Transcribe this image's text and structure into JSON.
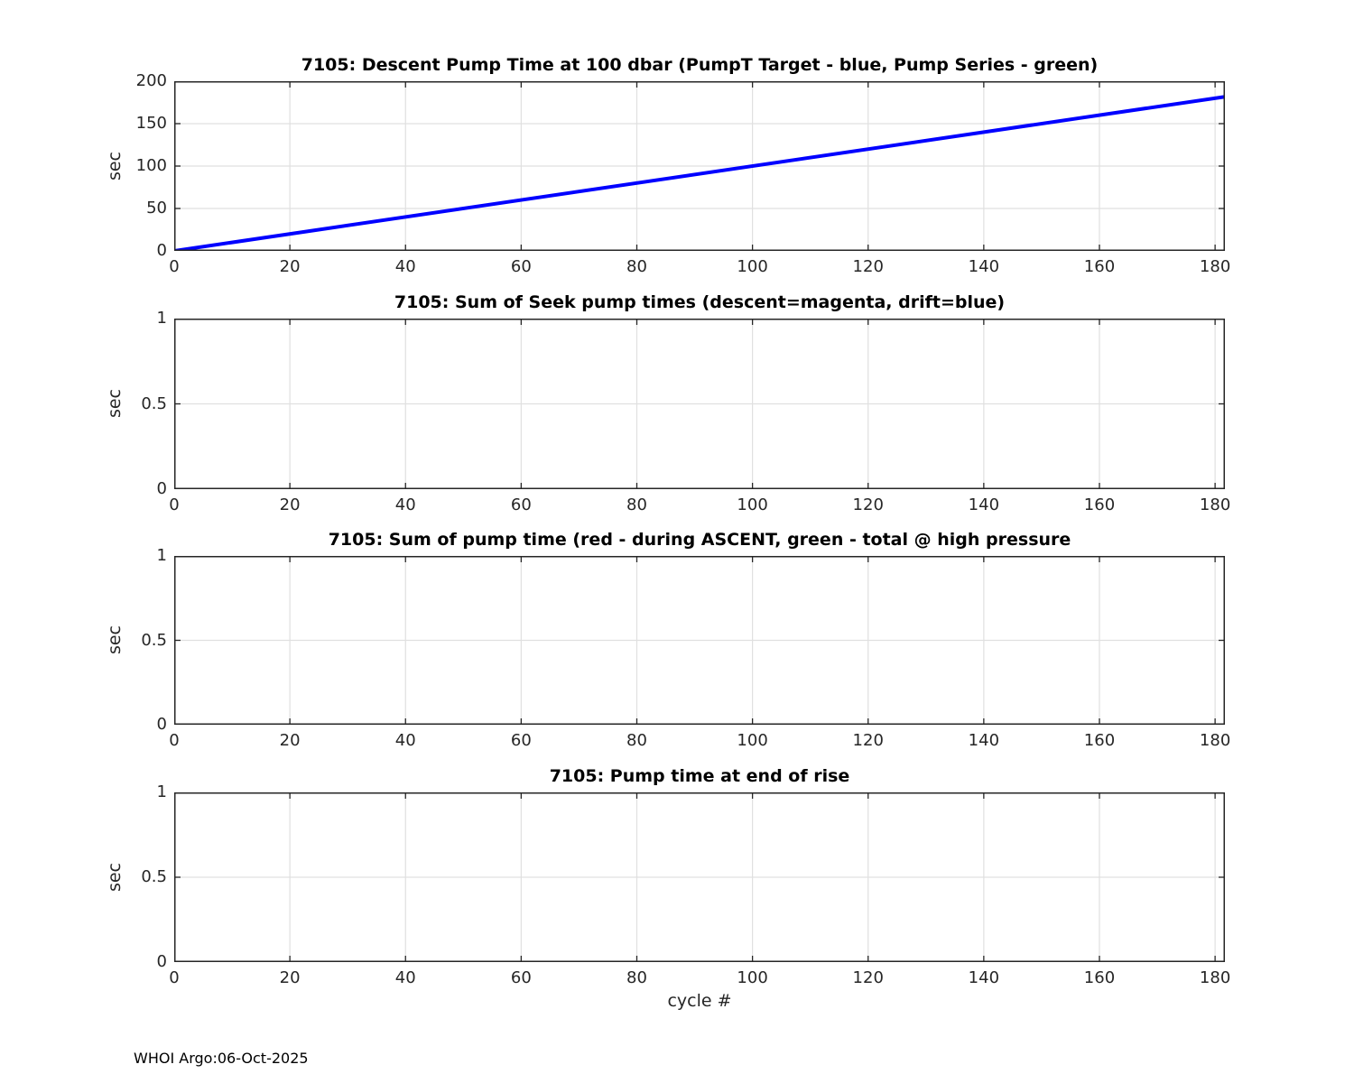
{
  "figure": {
    "footer_text": "WHOI Argo:06-Oct-2025",
    "xlabel": "cycle #",
    "colors": {
      "background": "#ffffff",
      "axis": "#262626",
      "grid": "#e0e0e0",
      "title": "#000000",
      "tick_label": "#262626",
      "line_blue": "#0000ff"
    }
  },
  "chart_data": [
    {
      "type": "line",
      "title": "7105: Descent Pump Time at 100 dbar (PumpT Target - blue, Pump Series - green)",
      "ylabel": "sec",
      "xlim": [
        0,
        181.7
      ],
      "ylim": [
        0,
        200
      ],
      "xticks": [
        0,
        20,
        40,
        60,
        80,
        100,
        120,
        140,
        160,
        180
      ],
      "xtick_labels": [
        "0",
        "20",
        "40",
        "60",
        "80",
        "100",
        "120",
        "140",
        "160",
        "180"
      ],
      "yticks": [
        0,
        50,
        100,
        150,
        200
      ],
      "ytick_labels": [
        "0",
        "50",
        "100",
        "150",
        "200"
      ],
      "grid": true,
      "series": [
        {
          "name": "PumpT Target",
          "color": "#0000ff",
          "line_width": 4,
          "x": [
            0,
            181.7
          ],
          "y": [
            0,
            181.7
          ],
          "note": "straight line, approx 1 sec per cycle"
        }
      ]
    },
    {
      "type": "line",
      "title": "7105: Sum of Seek pump times (descent=magenta, drift=blue)",
      "ylabel": "sec",
      "xlim": [
        0,
        181.7
      ],
      "ylim": [
        0,
        1
      ],
      "xticks": [
        0,
        20,
        40,
        60,
        80,
        100,
        120,
        140,
        160,
        180
      ],
      "xtick_labels": [
        "0",
        "20",
        "40",
        "60",
        "80",
        "100",
        "120",
        "140",
        "160",
        "180"
      ],
      "yticks": [
        0,
        0.5,
        1
      ],
      "ytick_labels": [
        "0",
        "0.5",
        "1"
      ],
      "grid": true,
      "series": []
    },
    {
      "type": "line",
      "title": "7105: Sum of pump time (red - during ASCENT, green - total @ high pressure",
      "ylabel": "sec",
      "xlim": [
        0,
        181.7
      ],
      "ylim": [
        0,
        1
      ],
      "xticks": [
        0,
        20,
        40,
        60,
        80,
        100,
        120,
        140,
        160,
        180
      ],
      "xtick_labels": [
        "0",
        "20",
        "40",
        "60",
        "80",
        "100",
        "120",
        "140",
        "160",
        "180"
      ],
      "yticks": [
        0,
        0.5,
        1
      ],
      "ytick_labels": [
        "0",
        "0.5",
        "1"
      ],
      "grid": true,
      "series": []
    },
    {
      "type": "line",
      "title": "7105: Pump time at end of rise",
      "ylabel": "sec",
      "xlim": [
        0,
        181.7
      ],
      "ylim": [
        0,
        1
      ],
      "xticks": [
        0,
        20,
        40,
        60,
        80,
        100,
        120,
        140,
        160,
        180
      ],
      "xtick_labels": [
        "0",
        "20",
        "40",
        "60",
        "80",
        "100",
        "120",
        "140",
        "160",
        "180"
      ],
      "yticks": [
        0,
        0.5,
        1
      ],
      "ytick_labels": [
        "0",
        "0.5",
        "1"
      ],
      "grid": true,
      "series": []
    }
  ]
}
